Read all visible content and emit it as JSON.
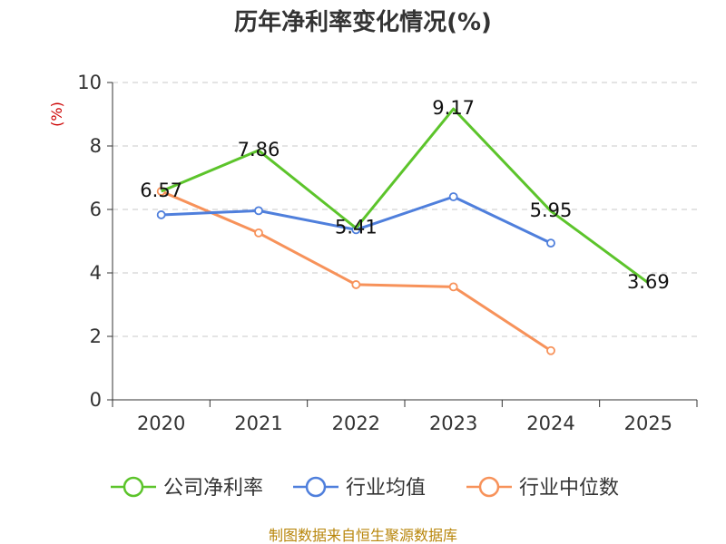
{
  "chart_data": {
    "type": "line",
    "title": "历年净利率变化情况(%)",
    "ylabel": "(%)",
    "xlabel": "",
    "categories": [
      "2020",
      "2021",
      "2022",
      "2023",
      "2024",
      "2025"
    ],
    "ylim": [
      0,
      10
    ],
    "yticks": [
      "0",
      "2",
      "4",
      "6",
      "8",
      "10"
    ],
    "grid": true,
    "legend_position": "bottom",
    "series": [
      {
        "name": "公司净利率",
        "color": "#5cc42b",
        "values": [
          6.57,
          7.86,
          5.41,
          9.17,
          5.95,
          3.69
        ],
        "labels": [
          "6.57",
          "7.86",
          "5.41",
          "9.17",
          "5.95",
          "3.69"
        ],
        "show_labels": true,
        "show_markers": false
      },
      {
        "name": "行业均值",
        "color": "#4f7fdc",
        "values": [
          5.83,
          5.96,
          5.36,
          6.4,
          4.94,
          null
        ],
        "show_labels": false,
        "show_markers": true
      },
      {
        "name": "行业中位数",
        "color": "#f7925a",
        "values": [
          6.57,
          5.26,
          3.63,
          3.56,
          1.55,
          null
        ],
        "show_labels": false,
        "show_markers": true
      }
    ],
    "source": "制图数据来自恒生聚源数据库"
  }
}
